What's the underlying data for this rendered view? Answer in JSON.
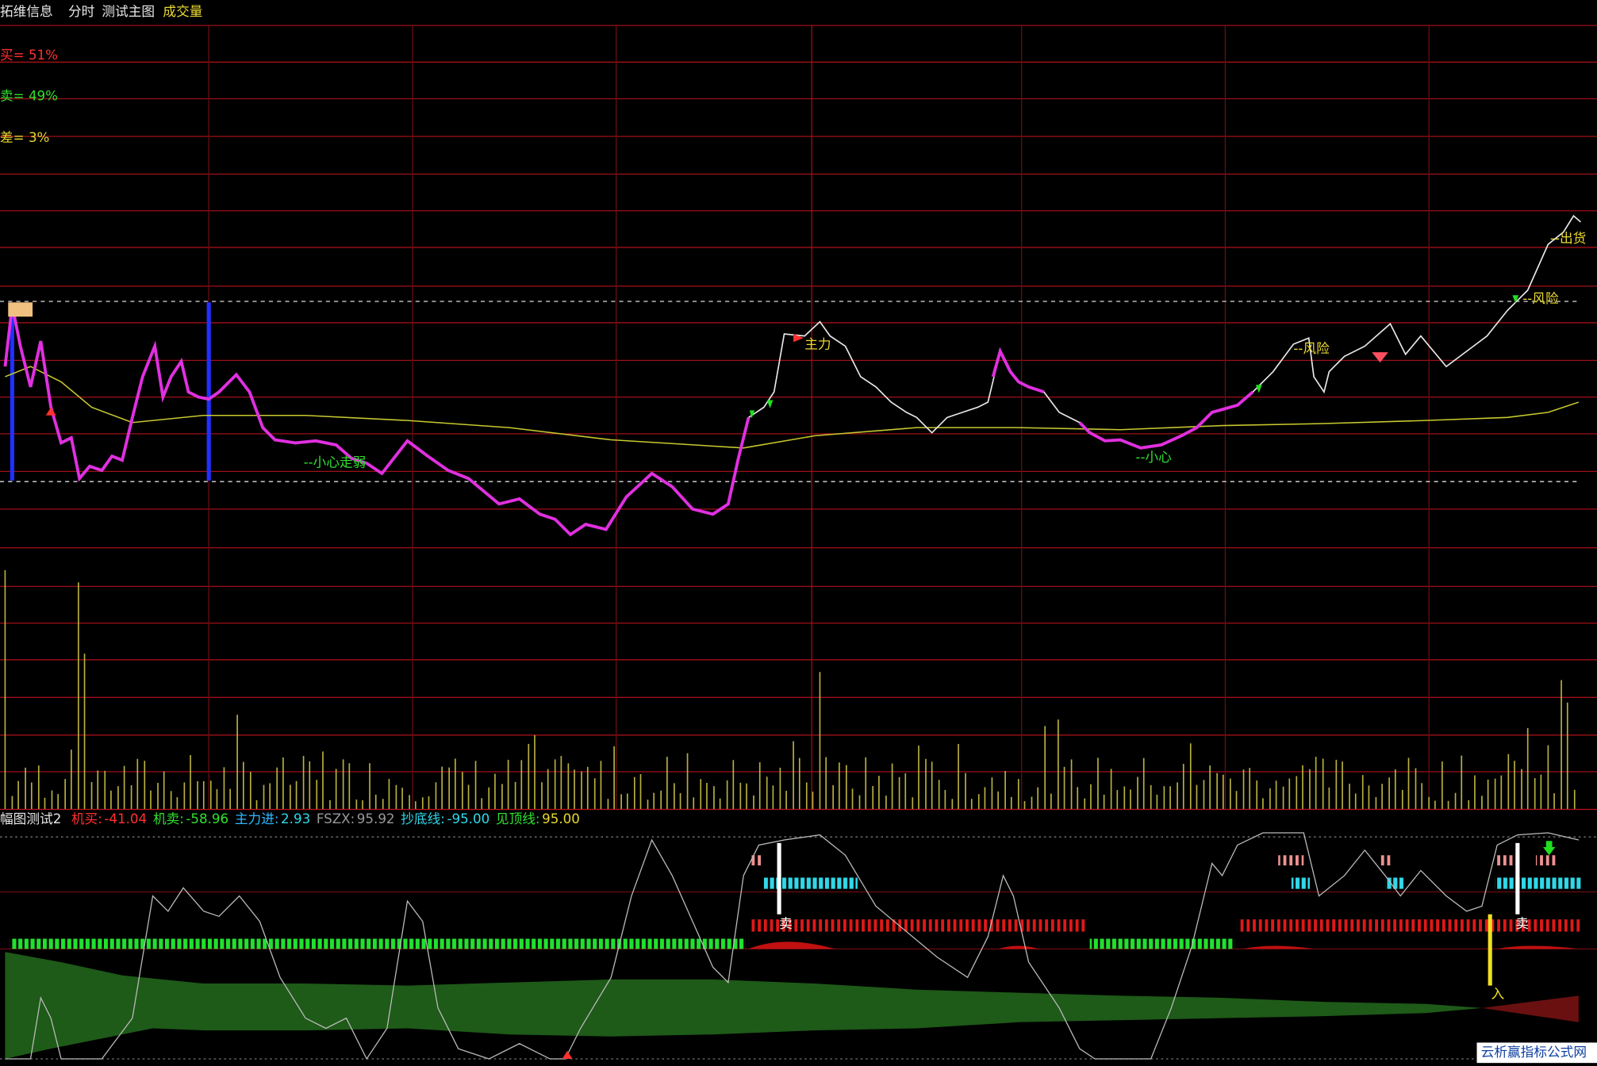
{
  "menu": {
    "items": [
      "拓维信息",
      "分时",
      "测试主图",
      "成交量"
    ]
  },
  "main_panel": {
    "stats": [
      "买= 51%",
      "卖= 49%",
      "差= 3%"
    ],
    "annotations": [
      "--小心走弱",
      "--小心",
      "主力",
      "--风险",
      "--风险",
      "--出货"
    ]
  },
  "indicator_panel": {
    "title": "幅图测试2",
    "legend": [
      {
        "label": "机买:",
        "value": "-41.04"
      },
      {
        "label": "机卖:",
        "value": "-58.96"
      },
      {
        "label": "主力进:",
        "value": "2.93"
      },
      {
        "label": "FSZX:",
        "value": "95.92"
      },
      {
        "label": "抄底线:",
        "value": "-95.00"
      },
      {
        "label": "见顶线:",
        "value": "95.00"
      }
    ],
    "marks": [
      "卖",
      "卖",
      "入"
    ]
  },
  "watermark": "云析赢指标公式网"
}
